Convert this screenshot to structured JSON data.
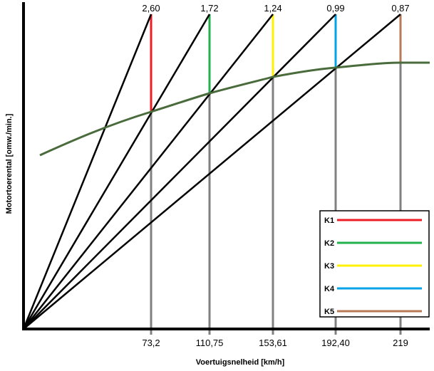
{
  "chart_data": {
    "type": "line",
    "title": "",
    "xlabel": "Voertuigsnelheid [km/h]",
    "ylabel": "Motortoerental [omw./min.]",
    "gears": [
      {
        "name": "K1",
        "ratio": "2,60",
        "speed": "73,2",
        "color": "#ee1c24"
      },
      {
        "name": "K2",
        "ratio": "1,72",
        "speed": "110,75",
        "color": "#22b14c"
      },
      {
        "name": "K3",
        "ratio": "1,24",
        "speed": "153,61",
        "color": "#fff200"
      },
      {
        "name": "K4",
        "ratio": "0,99",
        "speed": "192,40",
        "color": "#00a2e8"
      },
      {
        "name": "K5",
        "ratio": "0,87",
        "speed": "219",
        "color": "#b97a57"
      }
    ],
    "curve_color": "#4a6b3c",
    "grid": false,
    "legend_placement": "bottom-right"
  }
}
